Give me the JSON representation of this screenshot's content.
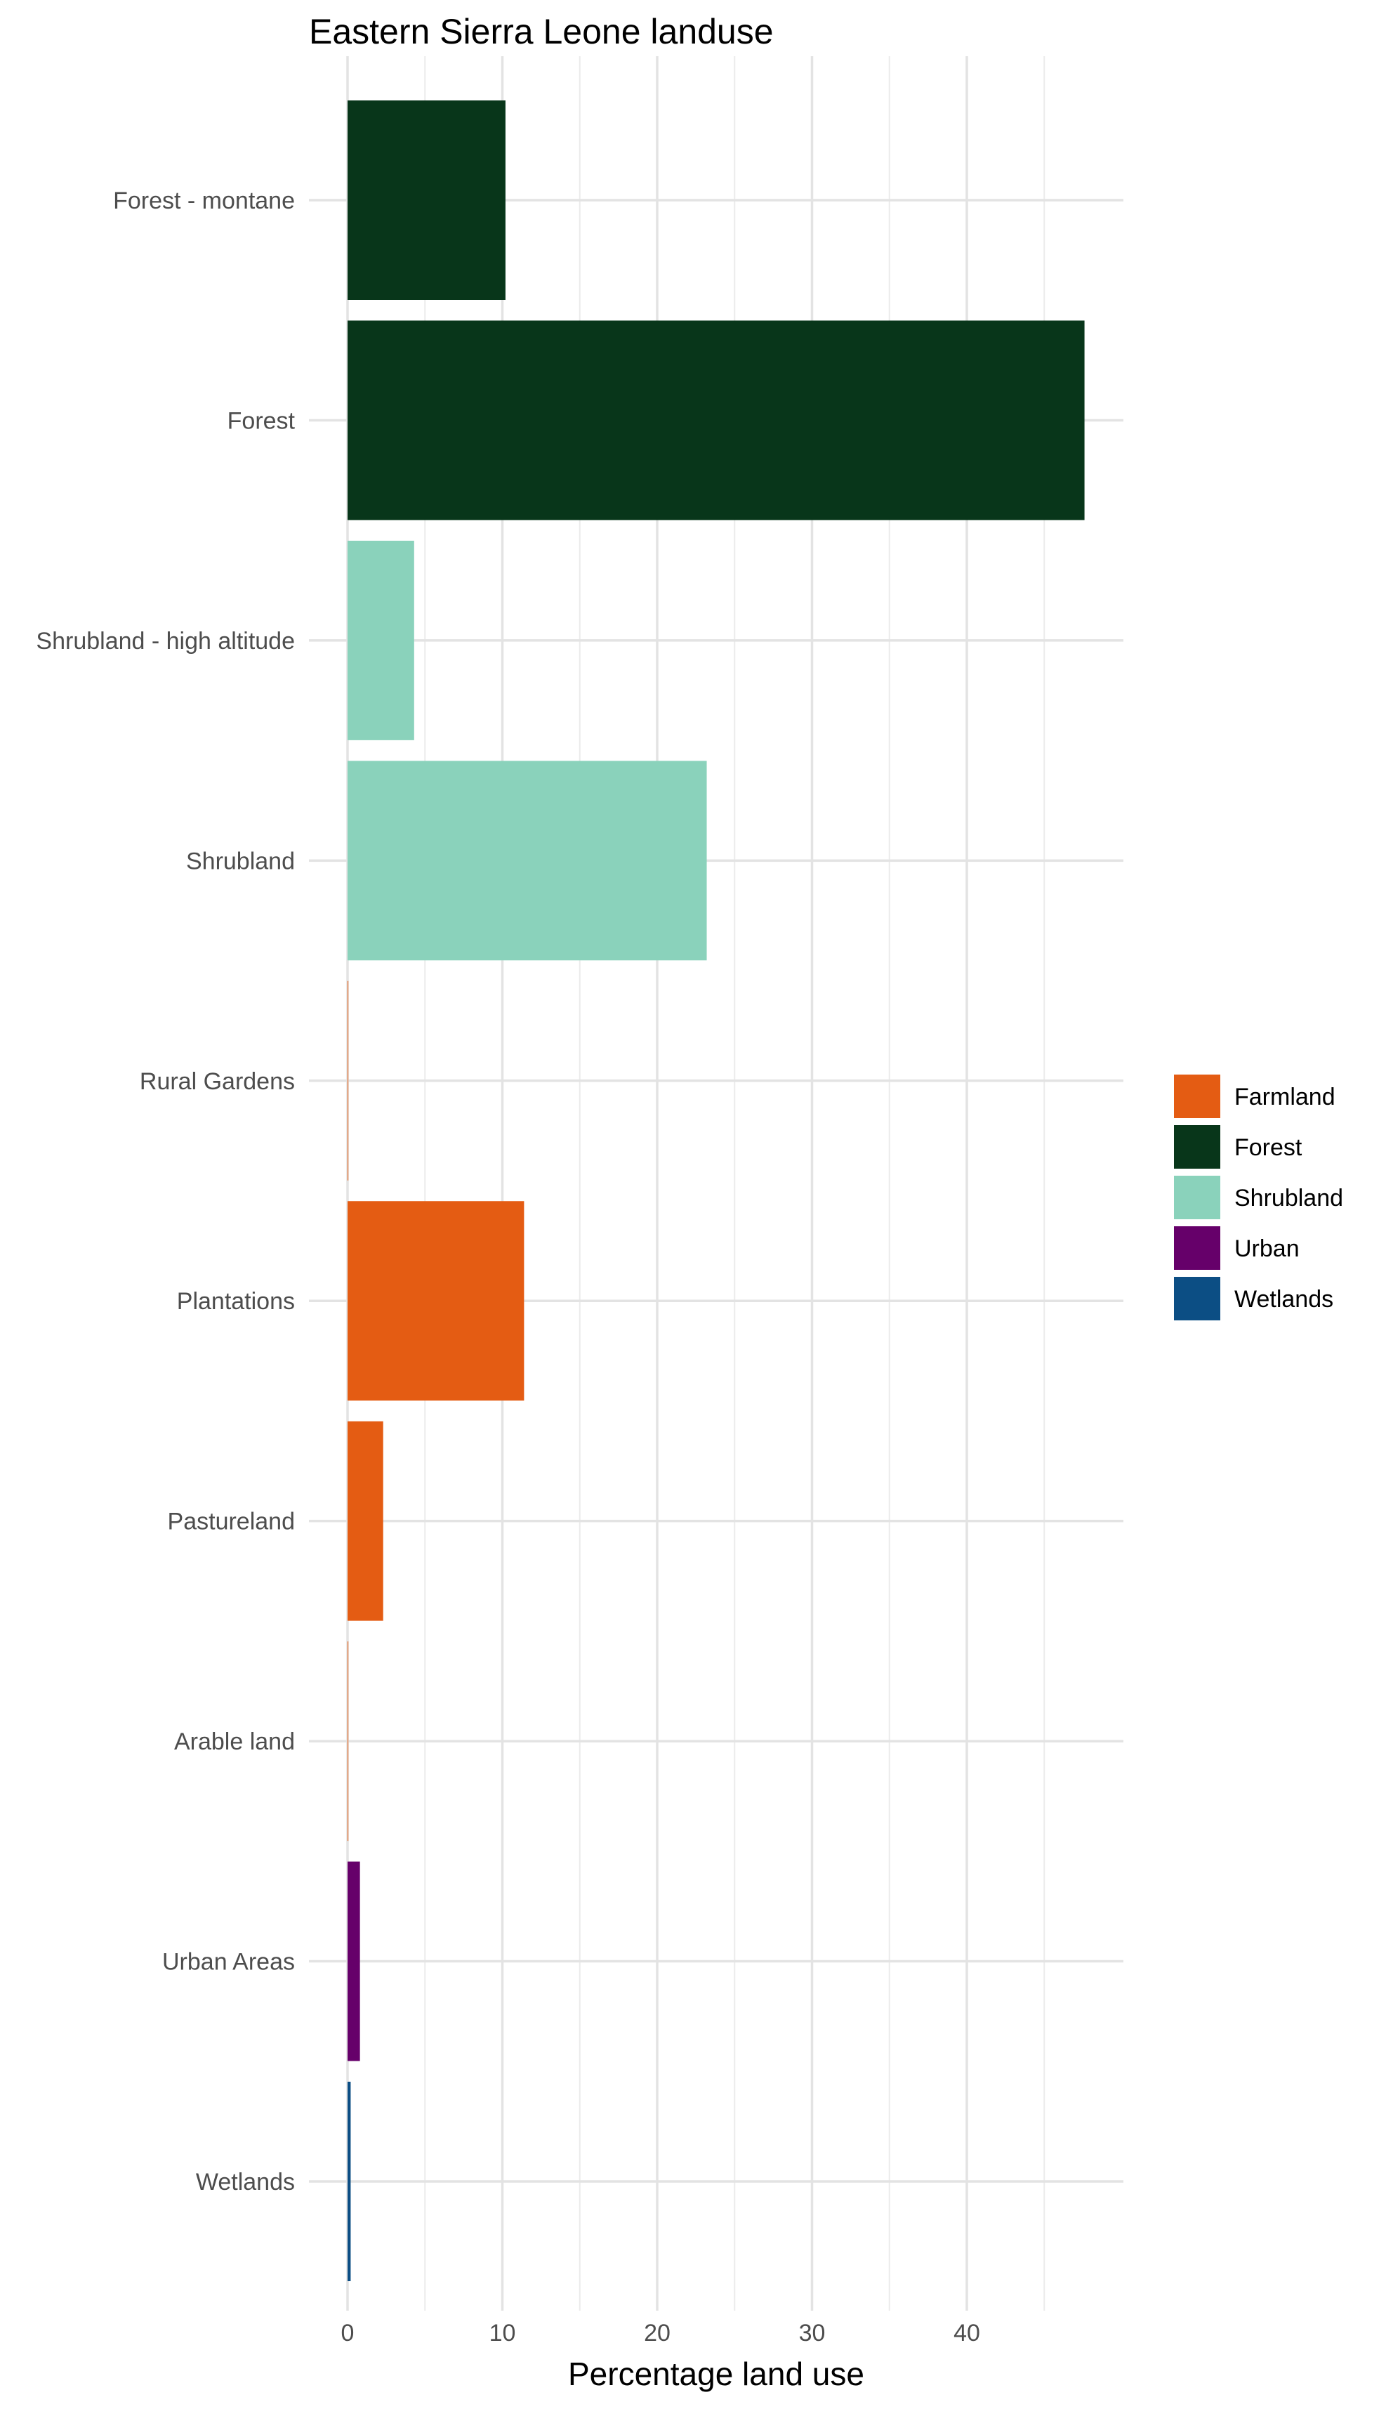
{
  "chart_data": {
    "type": "bar",
    "orientation": "horizontal",
    "title": "Eastern Sierra Leone landuse",
    "xlabel": "Percentage land use",
    "ylabel": "",
    "xlim": [
      -1.5,
      50
    ],
    "x_ticks": [
      0,
      10,
      20,
      30,
      40
    ],
    "minor_ticks": [
      5,
      15,
      25,
      35,
      45
    ],
    "grid": true,
    "legend_position": "right",
    "categories": [
      "Forest - montane",
      "Forest",
      "Shrubland - high altitude",
      "Shrubland",
      "Rural Gardens",
      "Plantations",
      "Pastureland",
      "Arable land",
      "Urban Areas",
      "Wetlands"
    ],
    "values": [
      10.2,
      47.6,
      4.3,
      23.2,
      0.05,
      11.4,
      2.3,
      0.05,
      0.8,
      0.2
    ],
    "groups": [
      "Forest",
      "Forest",
      "Shrubland",
      "Shrubland",
      "Farmland",
      "Farmland",
      "Farmland",
      "Farmland",
      "Urban",
      "Wetlands"
    ],
    "legend": [
      {
        "name": "Farmland",
        "color": "#E45C13"
      },
      {
        "name": "Forest",
        "color": "#08361A"
      },
      {
        "name": "Shrubland",
        "color": "#8AD2BB"
      },
      {
        "name": "Urban",
        "color": "#66006A"
      },
      {
        "name": "Wetlands",
        "color": "#0C4E84"
      }
    ]
  }
}
